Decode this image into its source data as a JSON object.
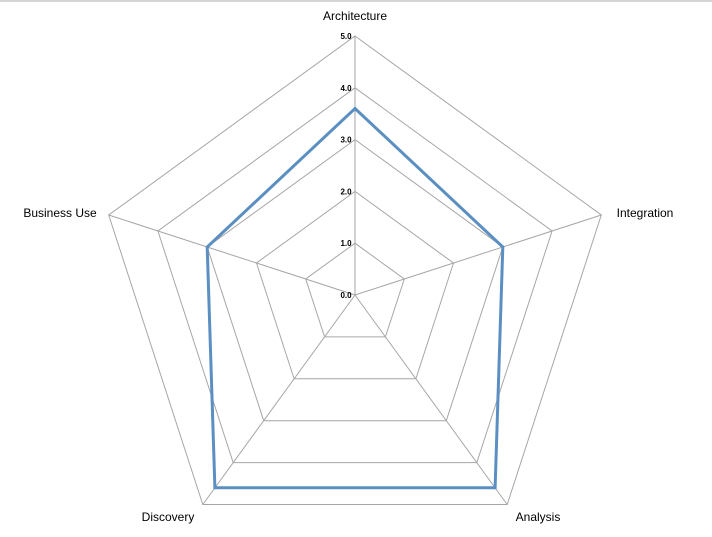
{
  "chart_data": {
    "type": "radar",
    "categories": [
      "Architecture",
      "Integration",
      "Analysis",
      "Discovery",
      "Business Use"
    ],
    "series": [
      {
        "values": [
          3.6,
          3.0,
          4.6,
          4.6,
          3.0
        ]
      }
    ],
    "rlim": [
      0,
      5
    ],
    "ticks": [
      "0.0",
      "1.0",
      "2.0",
      "3.0",
      "4.0",
      "5.0"
    ],
    "grid": true,
    "legend": "none",
    "colors": {
      "series": "#5b8fc1",
      "grid": "#a6a6a6"
    }
  }
}
